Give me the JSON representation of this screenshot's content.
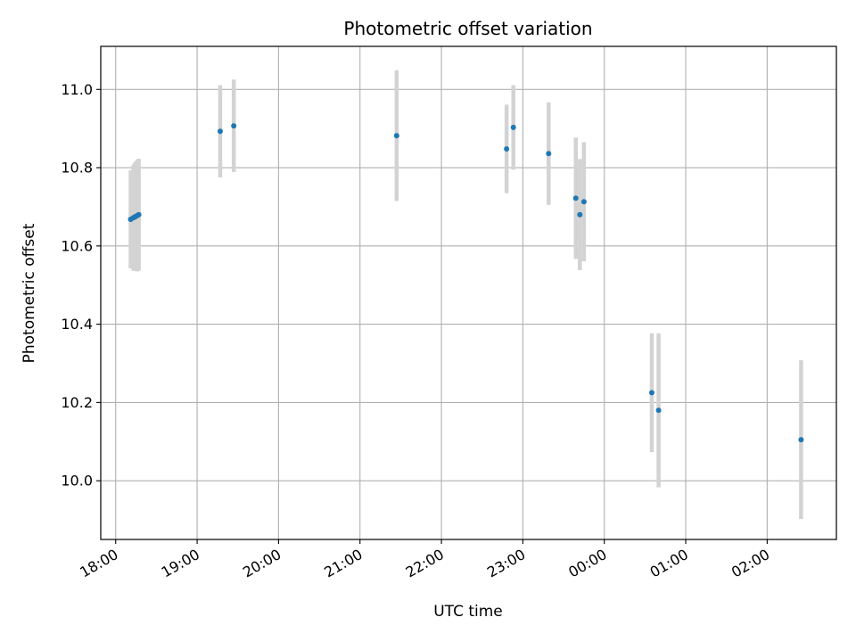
{
  "chart_data": {
    "type": "scatter",
    "title": "Photometric offset variation",
    "xlabel": "UTC time",
    "ylabel": "Photometric offset",
    "x_tick_labels": [
      "18:00",
      "19:00",
      "20:00",
      "21:00",
      "22:00",
      "23:00",
      "00:00",
      "01:00",
      "02:00"
    ],
    "y_ticks": [
      10.0,
      10.2,
      10.4,
      10.6,
      10.8,
      11.0
    ],
    "y_tick_labels": [
      "10.0",
      "10.2",
      "10.4",
      "10.6",
      "10.8",
      "11.0"
    ],
    "xlim": [
      "17:49",
      "02:51"
    ],
    "ylim": [
      9.85,
      11.11
    ],
    "grid": true,
    "colors": {
      "points": "#1f77b4",
      "error_bars": "#d3d3d3",
      "grid": "#b0b0b0"
    },
    "series": [
      {
        "x": [
          "18:11",
          "18:13",
          "18:14",
          "18:15",
          "18:16",
          "18:17",
          "19:17",
          "19:27",
          "21:27",
          "22:48",
          "22:53",
          "23:19",
          "23:39",
          "23:42",
          "23:45",
          "00:35",
          "00:40",
          "02:25"
        ],
        "y": [
          10.668,
          10.672,
          10.674,
          10.676,
          10.678,
          10.68,
          10.893,
          10.907,
          10.882,
          10.848,
          10.903,
          10.836,
          10.722,
          10.68,
          10.713,
          10.225,
          10.18,
          10.105
        ],
        "y_err": [
          0.125,
          0.135,
          0.138,
          0.14,
          0.143,
          0.143,
          0.118,
          0.118,
          0.167,
          0.113,
          0.108,
          0.131,
          0.155,
          0.142,
          0.152,
          0.152,
          0.197,
          0.203
        ]
      }
    ]
  }
}
